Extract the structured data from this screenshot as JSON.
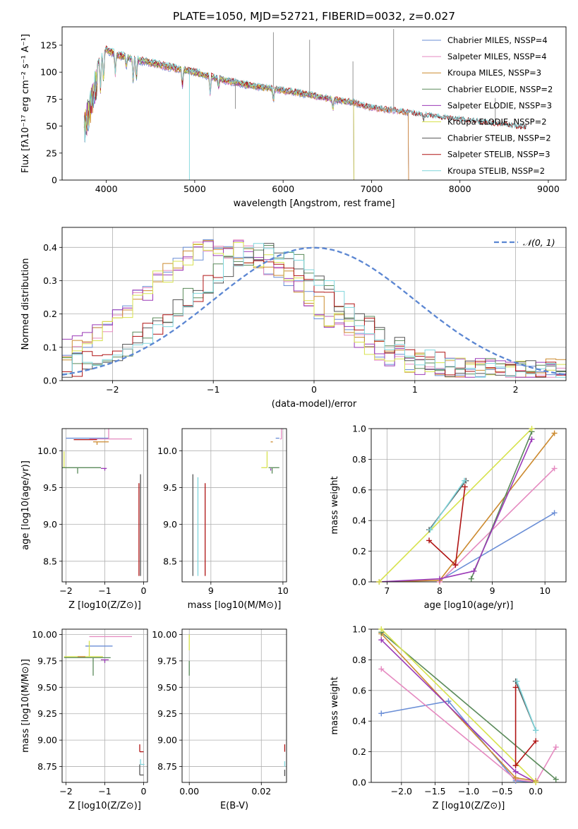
{
  "figure": {
    "title": "PLATE=1050, MJD=52721, FIBERID=0032, z=0.027",
    "model_colors": [
      "#6a8ed6",
      "#e58ac0",
      "#cc8a2f",
      "#5a8a5a",
      "#9b3ab7",
      "#d7e24d",
      "#555555",
      "#b01414",
      "#7fd6dc"
    ]
  },
  "chart_data": [
    {
      "type": "line",
      "id": "spectrum",
      "xlabel": "wavelength [Angstrom, rest frame]",
      "ylabel": "Flux [fλ10⁻¹⁷ erg cm⁻² s⁻¹ A⁻¹]",
      "xlim": [
        3500,
        9200
      ],
      "ylim": [
        0,
        142
      ],
      "xticks": [
        4000,
        5000,
        6000,
        7000,
        8000,
        9000
      ],
      "yticks": [
        0,
        25,
        50,
        75,
        100,
        125
      ],
      "grid": false,
      "legend_position": "top-right",
      "continuum": {
        "x": [
          3750,
          3900,
          4000,
          4100,
          4300,
          4500,
          4700,
          5000,
          5300,
          5600,
          6000,
          6300,
          6600,
          6800,
          7000,
          7300,
          7600,
          8000,
          8400,
          8700
        ],
        "y": [
          62,
          108,
          121,
          117,
          112,
          109,
          105,
          100,
          93,
          88,
          83,
          79,
          74,
          72,
          67,
          64,
          60,
          56,
          52,
          49
        ]
      },
      "series": [
        {
          "name": "Chabrier MILES, NSSP=4",
          "x_end": 7420
        },
        {
          "name": "Salpeter MILES, NSSP=4",
          "x_end": 7420
        },
        {
          "name": "Kroupa MILES, NSSP=3",
          "x_end": 7420
        },
        {
          "name": "Chabrier ELODIE, NSSP=2",
          "x_end": 6800
        },
        {
          "name": "Salpeter ELODIE, NSSP=3",
          "x_end": 6800
        },
        {
          "name": "Kroupa ELODIE, NSSP=2",
          "x_end": 6800
        },
        {
          "name": "Chabrier STELIB, NSSP=2",
          "x_end": 8750
        },
        {
          "name": "Salpeter STELIB, NSSP=3",
          "x_end": 8750
        },
        {
          "name": "Kroupa STELIB, NSSP=2",
          "x_end": 8750
        }
      ]
    },
    {
      "type": "histogram",
      "id": "residuals",
      "xlabel": "(data-model)/error",
      "ylabel": "Normed distribution",
      "xlim": [
        -2.5,
        2.5
      ],
      "ylim": [
        0,
        0.46
      ],
      "xticks": [
        -2,
        -1,
        0,
        1,
        2
      ],
      "yticks": [
        0.0,
        0.1,
        0.2,
        0.3,
        0.4
      ],
      "grid": true,
      "legend_position": "top-right",
      "legend_label": "𝒩(0, 1)",
      "normal_mean": 0,
      "normal_sigma": 1,
      "bin_width": 0.1,
      "groups": [
        {
          "members": [
            0,
            1,
            2,
            4,
            5
          ],
          "peak_x": -0.9,
          "peak_y": 0.37,
          "sigma": 0.82
        },
        {
          "members": [
            3,
            6,
            7,
            8
          ],
          "peak_x": -0.5,
          "peak_y": 0.35,
          "sigma": 0.75
        }
      ]
    },
    {
      "type": "errorbar",
      "id": "age_vs_z",
      "xlabel": "Z [log10(Z/Z⊙)]",
      "ylabel": "age  [log10(age/yr)]",
      "xlim": [
        -2.1,
        0.1
      ],
      "ylim": [
        8.22,
        10.3
      ],
      "xticks": [
        -2,
        -1,
        0
      ],
      "yticks": [
        8.5,
        9.0,
        9.5,
        10.0
      ],
      "grid": true,
      "points": [
        {
          "model": 0,
          "x": -1.1,
          "y": 10.17,
          "xerr": [
            0.9,
            0.2
          ],
          "yerr": [
            0.0,
            0.0
          ]
        },
        {
          "model": 1,
          "x": -0.9,
          "y": 10.16,
          "xerr": [
            0.5,
            0.6
          ],
          "yerr": [
            0.0,
            0.15
          ]
        },
        {
          "model": 2,
          "x": -1.2,
          "y": 10.12,
          "xerr": [
            0.1,
            0.3
          ],
          "yerr": [
            0.04,
            0.0
          ]
        },
        {
          "model": 7,
          "x": -1.5,
          "y": 10.15,
          "xerr": [
            0.3,
            0.3
          ],
          "yerr": [
            0.0,
            0.0
          ]
        },
        {
          "model": 5,
          "x": -2.05,
          "y": 9.77,
          "xerr": [
            0.0,
            0.15
          ],
          "yerr": [
            0.0,
            0.22
          ]
        },
        {
          "model": 3,
          "x": -1.7,
          "y": 9.77,
          "xerr": [
            0.4,
            0.6
          ],
          "yerr": [
            0.08,
            0.0
          ]
        },
        {
          "model": 4,
          "x": -1.0,
          "y": 9.76,
          "xerr": [
            0.1,
            0.05
          ],
          "yerr": [
            0.03,
            0.0
          ]
        },
        {
          "model": 6,
          "x": -0.08,
          "y": 8.3,
          "xerr": [
            0.0,
            0.0
          ],
          "yerr": [
            0.0,
            1.38
          ]
        },
        {
          "model": 7,
          "x": -0.12,
          "y": 8.3,
          "xerr": [
            0.0,
            0.0
          ],
          "yerr": [
            0.0,
            1.26
          ]
        },
        {
          "model": 8,
          "x": -0.05,
          "y": 8.3,
          "xerr": [
            0.0,
            0.0
          ],
          "yerr": [
            0.0,
            0.0
          ]
        }
      ]
    },
    {
      "type": "errorbar",
      "id": "age_vs_mass",
      "xlabel": "mass [log10(M/M⊙)]",
      "ylabel": "",
      "xlim": [
        8.6,
        10.05
      ],
      "ylim": [
        8.22,
        10.3
      ],
      "xticks": [
        9,
        10
      ],
      "yticks": [
        8.5,
        9.0,
        9.5,
        10.0
      ],
      "grid": true,
      "points": [
        {
          "model": 6,
          "x": 8.75,
          "y": 8.3,
          "xerr": [
            0.0,
            0.0
          ],
          "yerr": [
            0.0,
            1.38
          ]
        },
        {
          "model": 8,
          "x": 8.82,
          "y": 8.3,
          "xerr": [
            0.0,
            0.0
          ],
          "yerr": [
            0.0,
            1.34
          ]
        },
        {
          "model": 7,
          "x": 8.92,
          "y": 8.3,
          "xerr": [
            0.0,
            0.0
          ],
          "yerr": [
            0.0,
            1.26
          ]
        },
        {
          "model": 2,
          "x": 9.83,
          "y": 10.12,
          "xerr": [
            0.0,
            0.03
          ],
          "yerr": [
            0.0,
            0.0
          ]
        },
        {
          "model": 1,
          "x": 9.98,
          "y": 10.16,
          "xerr": [
            0.02,
            0.0
          ],
          "yerr": [
            0.0,
            0.15
          ]
        },
        {
          "model": 0,
          "x": 9.95,
          "y": 10.17,
          "xerr": [
            0.05,
            0.0
          ],
          "yerr": [
            0.0,
            0.0
          ]
        },
        {
          "model": 3,
          "x": 9.85,
          "y": 9.77,
          "xerr": [
            0.05,
            0.1
          ],
          "yerr": [
            0.08,
            0.0
          ]
        },
        {
          "model": 5,
          "x": 9.78,
          "y": 9.77,
          "xerr": [
            0.08,
            0.0
          ],
          "yerr": [
            0.0,
            0.22
          ]
        },
        {
          "model": 4,
          "x": 9.83,
          "y": 9.76,
          "xerr": [
            0.0,
            0.0
          ],
          "yerr": [
            0.03,
            0.0
          ]
        }
      ]
    },
    {
      "type": "line",
      "id": "weight_vs_age",
      "xlabel": "age  [log10(age/yr)]",
      "ylabel": "mass weight",
      "xlim": [
        6.7,
        10.4
      ],
      "ylim": [
        0,
        1
      ],
      "xticks": [
        7,
        8,
        9,
        10
      ],
      "yticks": [
        0.0,
        0.2,
        0.4,
        0.6,
        0.8,
        1.0
      ],
      "grid": true,
      "series": [
        {
          "model": 0,
          "x": [
            8.0,
            10.18
          ],
          "y": [
            0.01,
            0.45
          ]
        },
        {
          "model": 1,
          "x": [
            8.0,
            10.18
          ],
          "y": [
            0.0,
            0.74
          ]
        },
        {
          "model": 2,
          "x": [
            6.85,
            8.0,
            10.18
          ],
          "y": [
            0.0,
            0.01,
            0.97
          ]
        },
        {
          "model": 3,
          "x": [
            8.6,
            9.75
          ],
          "y": [
            0.02,
            0.98
          ]
        },
        {
          "model": 4,
          "x": [
            6.85,
            8.0,
            8.65,
            9.75
          ],
          "y": [
            0.0,
            0.02,
            0.07,
            0.93
          ]
        },
        {
          "model": 5,
          "x": [
            6.85,
            9.75
          ],
          "y": [
            0.0,
            1.0
          ]
        },
        {
          "model": 6,
          "x": [
            7.8,
            8.5
          ],
          "y": [
            0.34,
            0.66
          ]
        },
        {
          "model": 7,
          "x": [
            7.8,
            8.3,
            8.48
          ],
          "y": [
            0.27,
            0.11,
            0.62
          ]
        },
        {
          "model": 8,
          "x": [
            7.82,
            8.47
          ],
          "y": [
            0.34,
            0.66
          ]
        }
      ]
    },
    {
      "type": "errorbar",
      "id": "mass_vs_z",
      "xlabel": "Z [log10(Z/Z⊙)]",
      "ylabel": "mass [log10(M/M⊙)]",
      "xlim": [
        -2.1,
        0.1
      ],
      "ylim": [
        8.6,
        10.05
      ],
      "xticks": [
        -2,
        -1,
        0
      ],
      "yticks": [
        8.75,
        9.0,
        9.25,
        9.5,
        9.75,
        10.0
      ],
      "grid": true,
      "points": [
        {
          "model": 1,
          "x": -0.9,
          "y": 9.98,
          "xerr": [
            0.5,
            0.6
          ],
          "yerr": [
            0.0,
            0.0
          ]
        },
        {
          "model": 0,
          "x": -1.1,
          "y": 9.89,
          "xerr": [
            0.4,
            0.3
          ],
          "yerr": [
            0.0,
            0.0
          ]
        },
        {
          "model": 5,
          "x": -1.4,
          "y": 9.79,
          "xerr": [
            0.65,
            0.35
          ],
          "yerr": [
            0.0,
            0.15
          ]
        },
        {
          "model": 3,
          "x": -1.3,
          "y": 9.78,
          "xerr": [
            0.75,
            0.45
          ],
          "yerr": [
            0.17,
            0.0
          ]
        },
        {
          "model": 4,
          "x": -1.0,
          "y": 9.76,
          "xerr": [
            0.1,
            0.1
          ],
          "yerr": [
            0.03,
            0.0
          ]
        },
        {
          "model": 2,
          "x": -1.6,
          "y": 9.79,
          "xerr": [
            0.1,
            0.1
          ],
          "yerr": [
            0.0,
            0.0
          ]
        },
        {
          "model": 7,
          "x": -0.1,
          "y": 8.89,
          "xerr": [
            0.0,
            0.1
          ],
          "yerr": [
            0.0,
            0.07
          ]
        },
        {
          "model": 8,
          "x": -0.08,
          "y": 8.77,
          "xerr": [
            0.0,
            0.1
          ],
          "yerr": [
            0.0,
            0.05
          ]
        },
        {
          "model": 6,
          "x": -0.1,
          "y": 8.67,
          "xerr": [
            0.0,
            0.1
          ],
          "yerr": [
            0.0,
            0.1
          ]
        }
      ]
    },
    {
      "type": "errorbar",
      "id": "mass_vs_ebv",
      "xlabel": "E(B-V)",
      "ylabel": "",
      "xlim": [
        -0.002,
        0.027
      ],
      "ylim": [
        8.6,
        10.05
      ],
      "xticks": [
        0.0,
        0.02
      ],
      "xtick_labels": [
        "0.00",
        "0.02"
      ],
      "yticks": [
        8.75,
        9.0,
        9.25,
        9.5,
        9.75,
        10.0
      ],
      "grid": true,
      "points": [
        {
          "model": 5,
          "x": 0.0,
          "y": 9.85,
          "xerr": [
            0.0,
            0.0
          ],
          "yerr": [
            0.0,
            0.15
          ]
        },
        {
          "model": 3,
          "x": 0.0,
          "y": 9.75,
          "xerr": [
            0.0,
            0.0
          ],
          "yerr": [
            0.14,
            0.0
          ]
        },
        {
          "model": 2,
          "x": 0.0,
          "y": 9.79,
          "xerr": [
            0.0,
            0.0
          ],
          "yerr": [
            0.0,
            0.0
          ]
        },
        {
          "model": 7,
          "x": 0.0265,
          "y": 8.89,
          "xerr": [
            0.0,
            0.0
          ],
          "yerr": [
            0.0,
            0.07
          ]
        },
        {
          "model": 8,
          "x": 0.0265,
          "y": 8.8,
          "xerr": [
            0.0,
            0.0
          ],
          "yerr": [
            0.05,
            0.0
          ]
        },
        {
          "model": 6,
          "x": 0.0265,
          "y": 8.72,
          "xerr": [
            0.0,
            0.0
          ],
          "yerr": [
            0.06,
            0.0
          ]
        }
      ]
    },
    {
      "type": "line",
      "id": "weight_vs_z",
      "xlabel": "Z [log10(Z/Z⊙)]",
      "ylabel": "mass weight",
      "xlim": [
        -2.45,
        0.45
      ],
      "ylim": [
        0,
        1
      ],
      "xticks": [
        -2.0,
        -1.5,
        -1.0,
        -0.5,
        0.0
      ],
      "xtick_labels": [
        "−2.0",
        "−1.5",
        "−1.0",
        "−0.5",
        "0.0"
      ],
      "yticks": [
        0.0,
        0.2,
        0.4,
        0.6,
        0.8,
        1.0
      ],
      "grid": true,
      "series": [
        {
          "model": 0,
          "x": [
            -2.3,
            -1.3,
            -0.3,
            0.0
          ],
          "y": [
            0.45,
            0.53,
            0.01,
            0.0
          ]
        },
        {
          "model": 1,
          "x": [
            -2.3,
            -0.3,
            0.0,
            0.3
          ],
          "y": [
            0.74,
            0.02,
            0.0,
            0.23
          ]
        },
        {
          "model": 2,
          "x": [
            -2.3,
            -0.3,
            0.0
          ],
          "y": [
            0.97,
            0.03,
            0.01
          ]
        },
        {
          "model": 3,
          "x": [
            -2.3,
            0.3
          ],
          "y": [
            0.98,
            0.02
          ]
        },
        {
          "model": 4,
          "x": [
            -2.3,
            -0.3,
            0.0
          ],
          "y": [
            0.93,
            0.07,
            0.0
          ]
        },
        {
          "model": 5,
          "x": [
            -2.3,
            0.0
          ],
          "y": [
            1.0,
            0.0
          ]
        },
        {
          "model": 6,
          "x": [
            -0.3,
            0.0
          ],
          "y": [
            0.66,
            0.34
          ]
        },
        {
          "model": 7,
          "x": [
            -0.3,
            -0.3,
            0.0
          ],
          "y": [
            0.62,
            0.11,
            0.27
          ]
        },
        {
          "model": 8,
          "x": [
            -0.28,
            0.0
          ],
          "y": [
            0.66,
            0.34
          ]
        }
      ]
    }
  ]
}
